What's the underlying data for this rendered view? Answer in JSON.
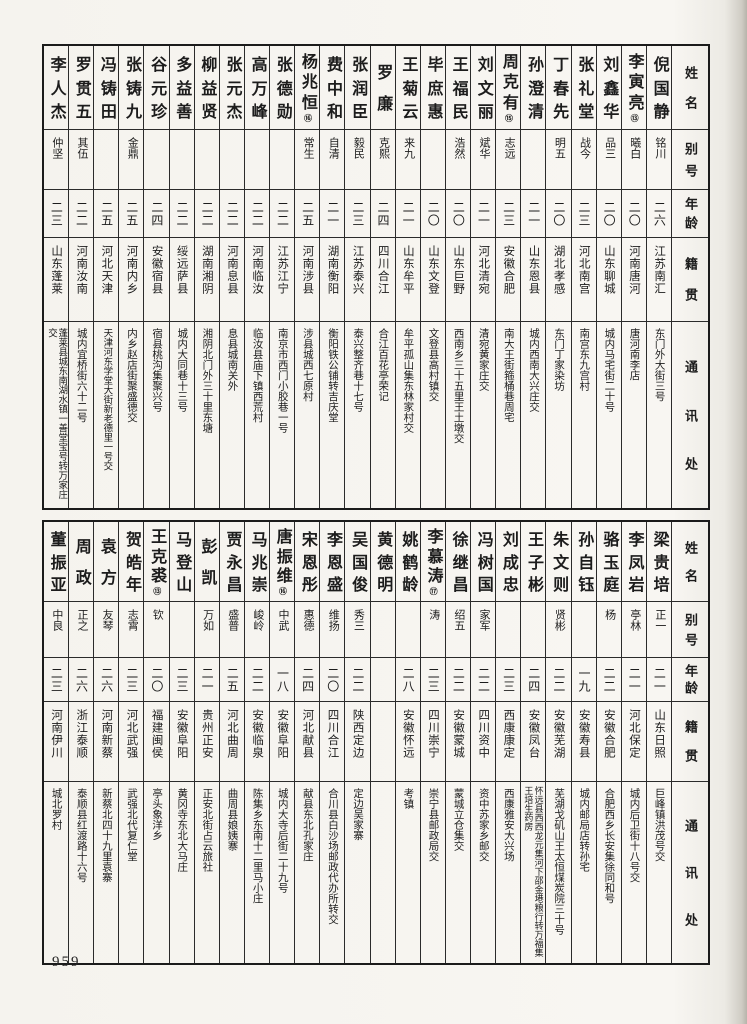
{
  "page_number": "959",
  "ink_color": "#1c1c1c",
  "paper_color": "#f7f5f1",
  "tables": [
    {
      "headers": [
        "姓名",
        "别号",
        "年龄",
        "籍贯",
        "通讯处"
      ],
      "people": [
        {
          "name": "倪国静",
          "mark": "",
          "alias": "铭川",
          "age": "二六",
          "origin": "江苏南汇",
          "address": "东门外大街三号"
        },
        {
          "name": "李寅亮",
          "mark": "⑬",
          "alias": "曦白",
          "age": "二〇",
          "origin": "河南唐河",
          "address": "唐河南李店"
        },
        {
          "name": "刘鑫华",
          "mark": "",
          "alias": "品三",
          "age": "二〇",
          "origin": "山东聊城",
          "address": "城内马宅街二十号"
        },
        {
          "name": "张礼堂",
          "mark": "",
          "alias": "战今",
          "age": "二三",
          "origin": "河北南宫",
          "address": "南宫东九宫村"
        },
        {
          "name": "丁春先",
          "mark": "",
          "alias": "明五",
          "age": "二〇",
          "origin": "湖北孝感",
          "address": "东门丁家染坊"
        },
        {
          "name": "孙澄清",
          "mark": "",
          "alias": "",
          "age": "二一",
          "origin": "山东恩县",
          "address": "城内西南大兴庄交"
        },
        {
          "name": "周克有",
          "mark": "⑮",
          "alias": "志远",
          "age": "二三",
          "origin": "安徽合肥",
          "address": "南大王街箍桶巷周宅"
        },
        {
          "name": "刘文丽",
          "mark": "",
          "alias": "斌华",
          "age": "二一",
          "origin": "河北清宛",
          "address": "清宛黄家庄交"
        },
        {
          "name": "王福民",
          "mark": "",
          "alias": "浩然",
          "age": "二〇",
          "origin": "山东巨野",
          "address": "西南乡三十五里王土墩交"
        },
        {
          "name": "毕庶惠",
          "mark": "",
          "alias": "",
          "age": "二〇",
          "origin": "山东文登",
          "address": "文登县高村镇交"
        },
        {
          "name": "王菊云",
          "mark": "",
          "alias": "来九",
          "age": "二一",
          "origin": "山东牟平",
          "address": "牟平孤山集东林家村交"
        },
        {
          "name": "罗廉",
          "mark": "",
          "alias": "克熙",
          "age": "二四",
          "origin": "四川合江",
          "address": "合江百花亭荣记"
        },
        {
          "name": "张润臣",
          "mark": "",
          "alias": "毅民",
          "age": "二三",
          "origin": "江苏泰兴",
          "address": "泰兴整齐巷十七号"
        },
        {
          "name": "费中和",
          "mark": "",
          "alias": "自清",
          "age": "二一",
          "origin": "湖南衡阳",
          "address": "衡阳铁公铺转吉庆堂"
        },
        {
          "name": "杨兆恒",
          "mark": "⑯",
          "alias": "常生",
          "age": "二五",
          "origin": "河南涉县",
          "address": "涉县城西七原村"
        },
        {
          "name": "张德勋",
          "mark": "",
          "alias": "",
          "age": "二二",
          "origin": "江苏江宁",
          "address": "南京市西门小胶巷一号"
        },
        {
          "name": "高万峰",
          "mark": "",
          "alias": "",
          "age": "二二",
          "origin": "河南临汝",
          "address": "临汝县庙下镇西荒村"
        },
        {
          "name": "张元杰",
          "mark": "",
          "alias": "",
          "age": "二二",
          "origin": "河南息县",
          "address": "息县城南关外"
        },
        {
          "name": "柳益贤",
          "mark": "",
          "alias": "",
          "age": "二二",
          "origin": "湖南湘阴",
          "address": "湘阴北门外三十里东塘"
        },
        {
          "name": "多益善",
          "mark": "",
          "alias": "",
          "age": "二二",
          "origin": "绥远萨县",
          "address": "城内大同巷十三号"
        },
        {
          "name": "谷元珍",
          "mark": "",
          "alias": "",
          "age": "二四",
          "origin": "安徽宿县",
          "address": "宿县桃沟集聚兴号"
        },
        {
          "name": "张铸九",
          "mark": "",
          "alias": "金鼎",
          "age": "二五",
          "origin": "河南内乡",
          "address": "内乡赵店街聚盛德交"
        },
        {
          "name": "冯铸田",
          "mark": "",
          "alias": "",
          "age": "二五",
          "origin": "河北天津",
          "address": "天津河东学堂大街新老德里一号交"
        },
        {
          "name": "罗贯五",
          "mark": "",
          "alias": "其伍",
          "age": "二二",
          "origin": "河南汝南",
          "address": "城内宜桥街六十二号"
        },
        {
          "name": "李人杰",
          "mark": "",
          "alias": "仲坚",
          "age": "二三",
          "origin": "山东蓬莱",
          "address": "蓬莱县城东南湖水镇一善堂宝号转万家庄交"
        }
      ]
    },
    {
      "headers": [
        "姓名",
        "别号",
        "年龄",
        "籍贯",
        "通讯处"
      ],
      "people": [
        {
          "name": "梁贵培",
          "mark": "",
          "alias": "正一",
          "age": "二一",
          "origin": "山东日照",
          "address": "巨峰镇洪茂号交"
        },
        {
          "name": "李凤岩",
          "mark": "",
          "alias": "亭林",
          "age": "二一",
          "origin": "河北保定",
          "address": "城内后卫街十八号交"
        },
        {
          "name": "骆玉庭",
          "mark": "",
          "alias": "杨",
          "age": "二二",
          "origin": "安徽合肥",
          "address": "合肥西乡长安集徐同和号"
        },
        {
          "name": "孙自钰",
          "mark": "",
          "alias": "",
          "age": "一九",
          "origin": "安徽寿县",
          "address": "城内邮局店转孙宅"
        },
        {
          "name": "朱文则",
          "mark": "",
          "alias": "贤彬",
          "age": "二二",
          "origin": "安徽芜湖",
          "address": "芜湖戈矶山王太恒煤炭院三十号"
        },
        {
          "name": "王子彬",
          "mark": "",
          "alias": "",
          "age": "二四",
          "origin": "安徽凤台",
          "address": "怀远县西西龙元集河下邵金塂粮行转万福集王培生药房",
          "small": true
        },
        {
          "name": "刘成忠",
          "mark": "",
          "alias": "",
          "age": "二三",
          "origin": "西康康定",
          "address": "西康雅安大兴场"
        },
        {
          "name": "冯树国",
          "mark": "",
          "alias": "家军",
          "age": "二二",
          "origin": "四川资中",
          "address": "资中苏家乡邮交"
        },
        {
          "name": "徐继昌",
          "mark": "",
          "alias": "绍五",
          "age": "二二",
          "origin": "安徽蒙城",
          "address": "蒙城立仓集交"
        },
        {
          "name": "李慕涛",
          "mark": "⑰",
          "alias": "涛",
          "age": "二三",
          "origin": "四川崇宁",
          "address": "崇宁县邮政局交"
        },
        {
          "name": "姚鹤龄",
          "mark": "",
          "alias": "",
          "age": "二八",
          "origin": "安徽怀远",
          "address": "考镇"
        },
        {
          "name": "黄德明",
          "mark": "",
          "alias": "",
          "age": "",
          "origin": "",
          "address": ""
        },
        {
          "name": "吴国俊",
          "mark": "",
          "alias": "秀三",
          "age": "二二",
          "origin": "陕西定边",
          "address": "定边吴家寨"
        },
        {
          "name": "李恩盛",
          "mark": "",
          "alias": "维扬",
          "age": "二〇",
          "origin": "四川合江",
          "address": "合川县白沙场邮政代办所转交"
        },
        {
          "name": "宋恩彤",
          "mark": "",
          "alias": "惠德",
          "age": "二四",
          "origin": "河北献县",
          "address": "献县东北孔家庄"
        },
        {
          "name": "唐振维",
          "mark": "⑯",
          "alias": "中武",
          "age": "一八",
          "origin": "安徽阜阳",
          "address": "城内大寺后街二十九号"
        },
        {
          "name": "马兆崇",
          "mark": "",
          "alias": "峻岭",
          "age": "二二",
          "origin": "安徽临泉",
          "address": "陈集乡东南十二里马小庄"
        },
        {
          "name": "贾永昌",
          "mark": "",
          "alias": "盛普",
          "age": "二五",
          "origin": "河北曲周",
          "address": "曲周县娘姨寨"
        },
        {
          "name": "彭凯",
          "mark": "",
          "alias": "万如",
          "age": "二一",
          "origin": "贵州正安",
          "address": "正安北街占云旅社"
        },
        {
          "name": "马登山",
          "mark": "",
          "alias": "",
          "age": "二三",
          "origin": "安徽阜阳",
          "address": "黄冈寺东北大马庄"
        },
        {
          "name": "王克裘",
          "mark": "⑬",
          "alias": "钦",
          "age": "二〇",
          "origin": "福建闽侯",
          "address": "亭头象洋乡"
        },
        {
          "name": "贺皓年",
          "mark": "",
          "alias": "志霄",
          "age": "二三",
          "origin": "河北武强",
          "address": "武强北代复仁堂"
        },
        {
          "name": "袁方",
          "mark": "",
          "alias": "友琴",
          "age": "二六",
          "origin": "河南新蔡",
          "address": "新蔡北四十九里袁寨"
        },
        {
          "name": "周政",
          "mark": "",
          "alias": "正之",
          "age": "二六",
          "origin": "浙江泰顺",
          "address": "泰顺县红渡路十六号"
        },
        {
          "name": "董振亚",
          "mark": "",
          "alias": "中良",
          "age": "二三",
          "origin": "河南伊川",
          "address": "城北罗村"
        }
      ]
    }
  ]
}
